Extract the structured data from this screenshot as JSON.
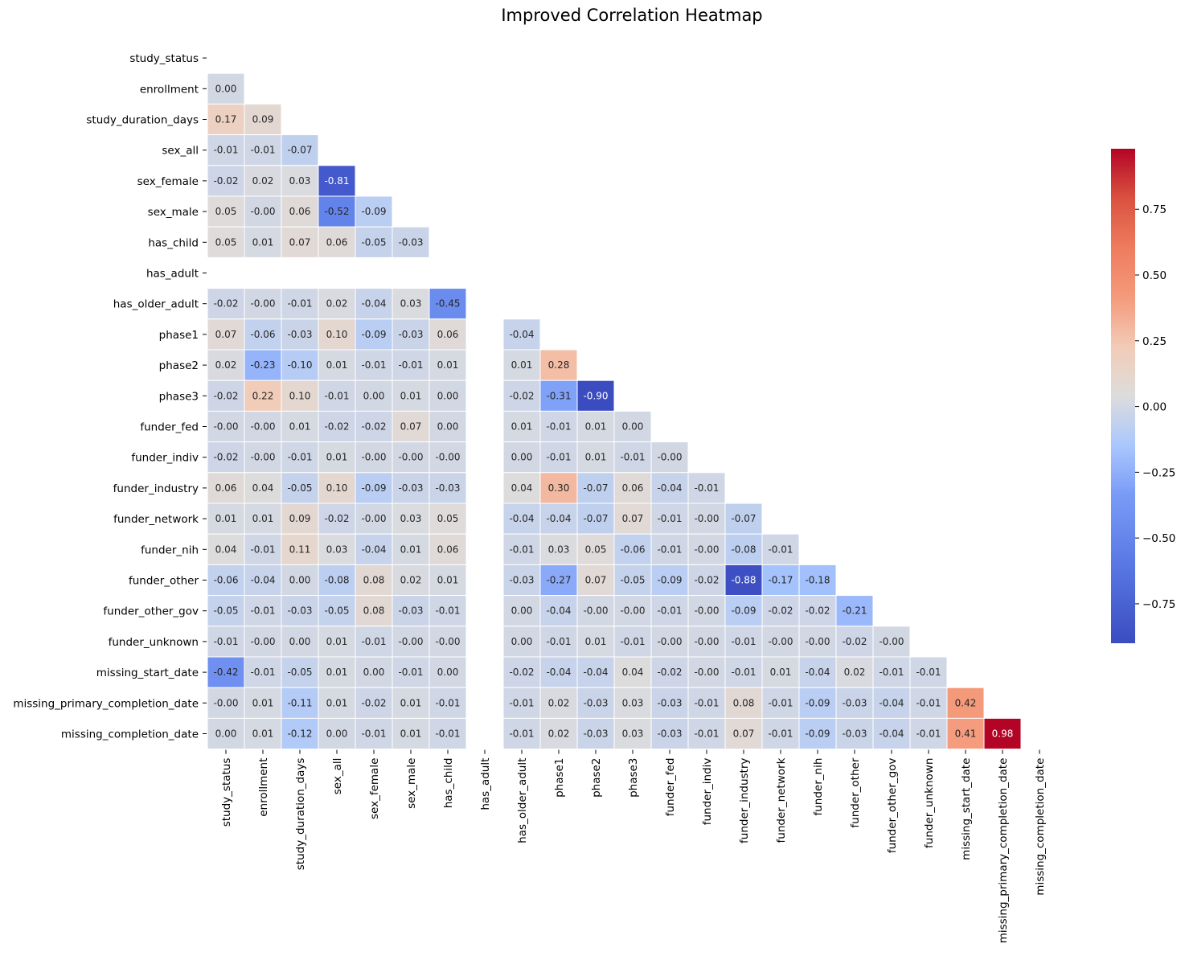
{
  "chart_data": {
    "type": "heatmap",
    "title": "Improved Correlation Heatmap",
    "colormap": "coolwarm",
    "mask": "upper-triangle-including-diagonal",
    "number_format": "2 decimals",
    "color_range": [
      -0.9,
      0.98
    ],
    "variables": [
      "study_status",
      "enrollment",
      "study_duration_days",
      "sex_all",
      "sex_female",
      "sex_male",
      "has_child",
      "has_adult",
      "has_older_adult",
      "phase1",
      "phase2",
      "phase3",
      "funder_fed",
      "funder_indiv",
      "funder_industry",
      "funder_network",
      "funder_nih",
      "funder_other",
      "funder_other_gov",
      "funder_unknown",
      "missing_start_date",
      "missing_primary_completion_date",
      "missing_completion_date"
    ],
    "lower_triangle_values": [
      [],
      [
        0.0
      ],
      [
        0.17,
        0.09
      ],
      [
        -0.01,
        -0.01,
        -0.07
      ],
      [
        -0.02,
        0.02,
        0.03,
        -0.81
      ],
      [
        0.05,
        -0.0,
        0.06,
        -0.52,
        -0.09
      ],
      [
        0.05,
        0.01,
        0.07,
        0.06,
        -0.05,
        -0.03
      ],
      [
        null,
        null,
        null,
        null,
        null,
        null,
        null
      ],
      [
        -0.02,
        -0.0,
        -0.01,
        0.02,
        -0.04,
        0.03,
        -0.45,
        null
      ],
      [
        0.07,
        -0.06,
        -0.03,
        0.1,
        -0.09,
        -0.03,
        0.06,
        null,
        -0.04
      ],
      [
        0.02,
        -0.23,
        -0.1,
        0.01,
        -0.01,
        -0.01,
        0.01,
        null,
        0.01,
        0.28
      ],
      [
        -0.02,
        0.22,
        0.1,
        -0.01,
        0.0,
        0.01,
        0.0,
        null,
        -0.02,
        -0.31,
        -0.9
      ],
      [
        -0.0,
        -0.0,
        0.01,
        -0.02,
        -0.02,
        0.07,
        0.0,
        null,
        0.01,
        -0.01,
        0.01,
        0.0
      ],
      [
        -0.02,
        -0.0,
        -0.01,
        0.01,
        -0.0,
        -0.0,
        -0.0,
        null,
        0.0,
        -0.01,
        0.01,
        -0.01,
        -0.0
      ],
      [
        0.06,
        0.04,
        -0.05,
        0.1,
        -0.09,
        -0.03,
        -0.03,
        null,
        0.04,
        0.3,
        -0.07,
        0.06,
        -0.04,
        -0.01
      ],
      [
        0.01,
        0.01,
        0.09,
        -0.02,
        -0.0,
        0.03,
        0.05,
        null,
        -0.04,
        -0.04,
        -0.07,
        0.07,
        -0.01,
        -0.0,
        -0.07
      ],
      [
        0.04,
        -0.01,
        0.11,
        0.03,
        -0.04,
        0.01,
        0.06,
        null,
        -0.01,
        0.03,
        0.05,
        -0.06,
        -0.01,
        -0.0,
        -0.08,
        -0.01
      ],
      [
        -0.06,
        -0.04,
        0.0,
        -0.08,
        0.08,
        0.02,
        0.01,
        null,
        -0.03,
        -0.27,
        0.07,
        -0.05,
        -0.09,
        -0.02,
        -0.88,
        -0.17,
        -0.18
      ],
      [
        -0.05,
        -0.01,
        -0.03,
        -0.05,
        0.08,
        -0.03,
        -0.01,
        null,
        0.0,
        -0.04,
        -0.0,
        -0.0,
        -0.01,
        -0.0,
        -0.09,
        -0.02,
        -0.02,
        -0.21
      ],
      [
        -0.01,
        -0.0,
        0.0,
        0.01,
        -0.01,
        -0.0,
        -0.0,
        null,
        0.0,
        -0.01,
        0.01,
        -0.01,
        -0.0,
        -0.0,
        -0.01,
        -0.0,
        -0.0,
        -0.02,
        -0.0
      ],
      [
        -0.42,
        -0.01,
        -0.05,
        0.01,
        0.0,
        -0.01,
        0.0,
        null,
        -0.02,
        -0.04,
        -0.04,
        0.04,
        -0.02,
        -0.0,
        -0.01,
        0.01,
        -0.04,
        0.02,
        -0.01,
        -0.01
      ],
      [
        -0.0,
        0.01,
        -0.11,
        0.01,
        -0.02,
        0.01,
        -0.01,
        null,
        -0.01,
        0.02,
        -0.03,
        0.03,
        -0.03,
        -0.01,
        0.08,
        -0.01,
        -0.09,
        -0.03,
        -0.04,
        -0.01,
        0.42
      ],
      [
        0.0,
        0.01,
        -0.12,
        0.0,
        -0.01,
        0.01,
        -0.01,
        null,
        -0.01,
        0.02,
        -0.03,
        0.03,
        -0.03,
        -0.01,
        0.07,
        -0.01,
        -0.09,
        -0.03,
        -0.04,
        -0.01,
        0.41,
        0.98
      ]
    ],
    "colorbar": {
      "ticks": [
        -0.75,
        -0.5,
        -0.25,
        0.0,
        0.25,
        0.5,
        0.75
      ],
      "tick_labels": [
        "−0.75",
        "−0.50",
        "−0.25",
        "0.00",
        "0.25",
        "0.50",
        "0.75"
      ]
    },
    "grid": false,
    "legend": "colorbar-right"
  }
}
